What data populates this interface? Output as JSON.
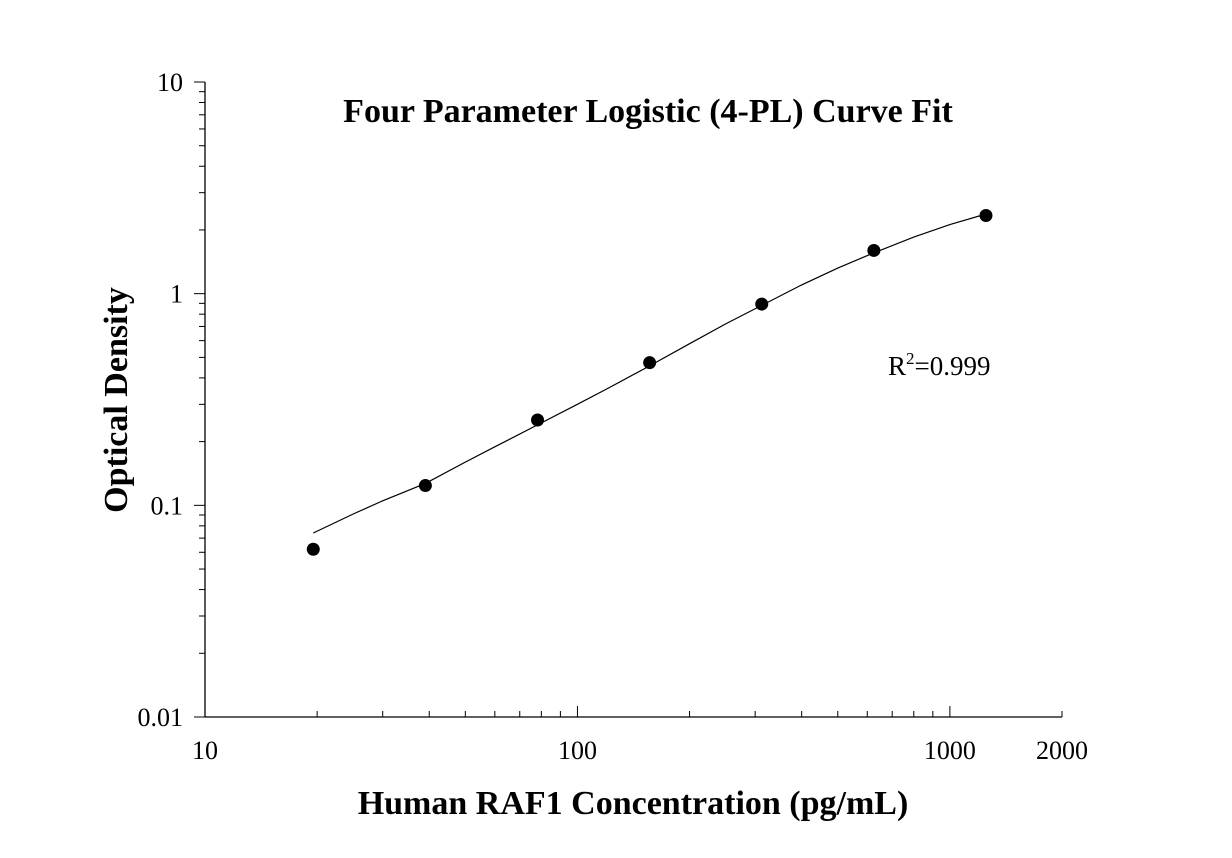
{
  "chart_data": {
    "type": "scatter",
    "title": "Four Parameter Logistic (4-PL) Curve Fit",
    "xlabel": "Human RAF1 Concentration (pg/mL)",
    "ylabel": "Optical Density",
    "xscale": "log",
    "yscale": "log",
    "xlim": [
      10,
      2000
    ],
    "ylim": [
      0.01,
      10
    ],
    "x_ticks": [
      {
        "value": 10,
        "label": "10"
      },
      {
        "value": 100,
        "label": "100"
      },
      {
        "value": 1000,
        "label": "1000"
      },
      {
        "value": 2000,
        "label": "2000"
      }
    ],
    "y_ticks": [
      {
        "value": 0.01,
        "label": "0.01"
      },
      {
        "value": 0.1,
        "label": "0.1"
      },
      {
        "value": 1,
        "label": "1"
      },
      {
        "value": 10,
        "label": "10"
      }
    ],
    "grid": false,
    "legend": "none",
    "annotation": {
      "base": "R",
      "sup": "2",
      "rest": "=0.999"
    },
    "series": [
      {
        "kind": "points",
        "x": [
          19.53,
          39.06,
          78.13,
          156.25,
          312.5,
          625,
          1250
        ],
        "y": [
          0.062,
          0.124,
          0.253,
          0.472,
          0.893,
          1.6,
          2.34
        ]
      },
      {
        "kind": "fit_curve",
        "x": [
          19.53,
          25,
          30,
          39.06,
          50,
          60,
          78.13,
          100,
          120,
          156.25,
          200,
          250,
          312.5,
          400,
          500,
          625,
          800,
          1000,
          1250
        ],
        "y": [
          0.074,
          0.091,
          0.105,
          0.127,
          0.16,
          0.189,
          0.24,
          0.3,
          0.355,
          0.456,
          0.58,
          0.72,
          0.88,
          1.1,
          1.32,
          1.56,
          1.85,
          2.12,
          2.38
        ]
      }
    ],
    "colors": {
      "marker": "#000000",
      "line": "#000000",
      "axis": "#000000"
    }
  }
}
